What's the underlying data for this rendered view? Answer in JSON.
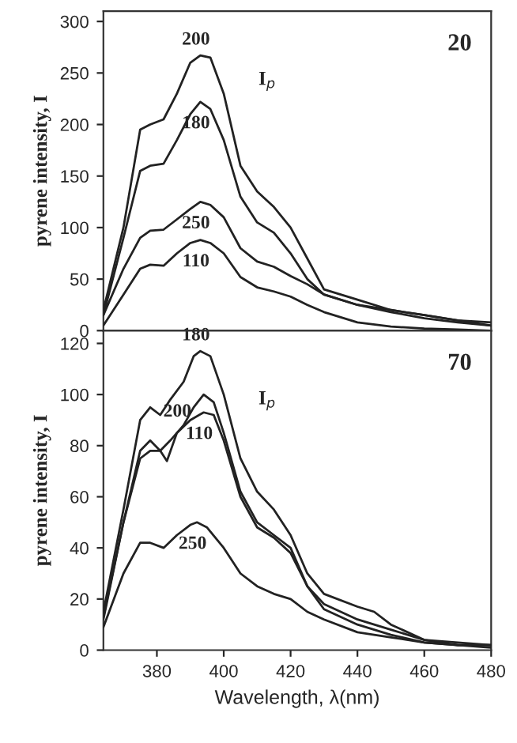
{
  "chart_data": [
    {
      "type": "line",
      "ylabel": "pyrene intensity, I",
      "xlim": [
        364,
        480
      ],
      "ylim": [
        0,
        310
      ],
      "yticks": [
        0,
        50,
        100,
        150,
        200,
        250,
        300
      ],
      "tick_labels": "y",
      "grid": false,
      "legend": false,
      "annotations": [
        "20",
        "I$_{p}$"
      ],
      "series": [
        {
          "name": "200",
          "color": "#222222",
          "x": [
            364,
            370,
            375,
            378,
            382,
            386,
            390,
            393,
            396,
            400,
            405,
            410,
            415,
            420,
            425,
            430,
            440,
            450,
            460,
            470,
            480
          ],
          "values": [
            20,
            100,
            195,
            200,
            205,
            230,
            260,
            267,
            265,
            230,
            160,
            135,
            120,
            100,
            70,
            40,
            30,
            20,
            15,
            10,
            5
          ]
        },
        {
          "name": "180",
          "color": "#222222",
          "x": [
            364,
            370,
            375,
            378,
            382,
            386,
            390,
            393,
            396,
            400,
            405,
            410,
            415,
            420,
            425,
            430,
            440,
            450,
            460,
            470,
            480
          ],
          "values": [
            15,
            90,
            155,
            160,
            162,
            185,
            210,
            222,
            215,
            185,
            130,
            105,
            95,
            75,
            50,
            35,
            25,
            20,
            15,
            10,
            8
          ]
        },
        {
          "name": "250",
          "color": "#222222",
          "x": [
            364,
            370,
            375,
            378,
            382,
            386,
            390,
            393,
            396,
            400,
            405,
            410,
            415,
            420,
            425,
            430,
            440,
            450,
            460,
            470,
            480
          ],
          "values": [
            15,
            60,
            90,
            97,
            98,
            108,
            118,
            125,
            122,
            110,
            80,
            67,
            62,
            53,
            45,
            35,
            25,
            18,
            12,
            8,
            5
          ]
        },
        {
          "name": "110",
          "color": "#222222",
          "x": [
            364,
            370,
            375,
            378,
            382,
            386,
            390,
            393,
            396,
            400,
            405,
            410,
            415,
            420,
            425,
            430,
            440,
            450,
            460,
            470,
            480
          ],
          "values": [
            5,
            35,
            60,
            64,
            63,
            75,
            85,
            88,
            85,
            75,
            52,
            42,
            38,
            33,
            25,
            18,
            8,
            4,
            2,
            1,
            0
          ]
        }
      ]
    },
    {
      "type": "line",
      "xlabel": "Wavelength, λ(nm)",
      "ylabel": "pyrene intensity, I",
      "xlim": [
        364,
        480
      ],
      "xticks": [
        380,
        400,
        420,
        440,
        460,
        480
      ],
      "ylim": [
        0,
        125
      ],
      "yticks": [
        0,
        20,
        40,
        60,
        80,
        100,
        120
      ],
      "grid": false,
      "legend": false,
      "annotations": [
        "70",
        "I$_{p}$"
      ],
      "series": [
        {
          "name": "180",
          "color": "#222222",
          "x": [
            364,
            370,
            375,
            378,
            381,
            384,
            388,
            391,
            393,
            396,
            400,
            405,
            410,
            415,
            420,
            425,
            430,
            440,
            445,
            450,
            460,
            470,
            480
          ],
          "values": [
            15,
            55,
            90,
            95,
            92,
            98,
            105,
            115,
            117,
            115,
            100,
            75,
            62,
            55,
            45,
            30,
            22,
            17,
            15,
            10,
            4,
            3,
            2
          ]
        },
        {
          "name": "200",
          "color": "#222222",
          "x": [
            364,
            370,
            375,
            378,
            381,
            384,
            388,
            391,
            394,
            397,
            400,
            405,
            410,
            415,
            420,
            425,
            430,
            440,
            450,
            460,
            470,
            480
          ],
          "values": [
            12,
            50,
            78,
            82,
            78,
            82,
            88,
            95,
            100,
            97,
            85,
            62,
            50,
            45,
            40,
            25,
            18,
            12,
            8,
            4,
            2,
            2
          ]
        },
        {
          "name": "110",
          "color": "#222222",
          "x": [
            364,
            370,
            375,
            378,
            381,
            383,
            386,
            390,
            394,
            397,
            400,
            405,
            410,
            415,
            420,
            425,
            430,
            440,
            450,
            460,
            470,
            480
          ],
          "values": [
            13,
            50,
            75,
            78,
            78,
            74,
            85,
            90,
            93,
            92,
            82,
            60,
            48,
            44,
            38,
            25,
            16,
            10,
            6,
            3,
            2,
            2
          ]
        },
        {
          "name": "250",
          "color": "#222222",
          "x": [
            364,
            370,
            375,
            378,
            382,
            386,
            390,
            392,
            395,
            400,
            405,
            410,
            415,
            420,
            425,
            430,
            440,
            450,
            460,
            470,
            480
          ],
          "values": [
            9,
            30,
            42,
            42,
            40,
            45,
            49,
            50,
            48,
            40,
            30,
            25,
            22,
            20,
            15,
            12,
            7,
            5,
            3,
            2,
            1
          ]
        }
      ]
    }
  ]
}
